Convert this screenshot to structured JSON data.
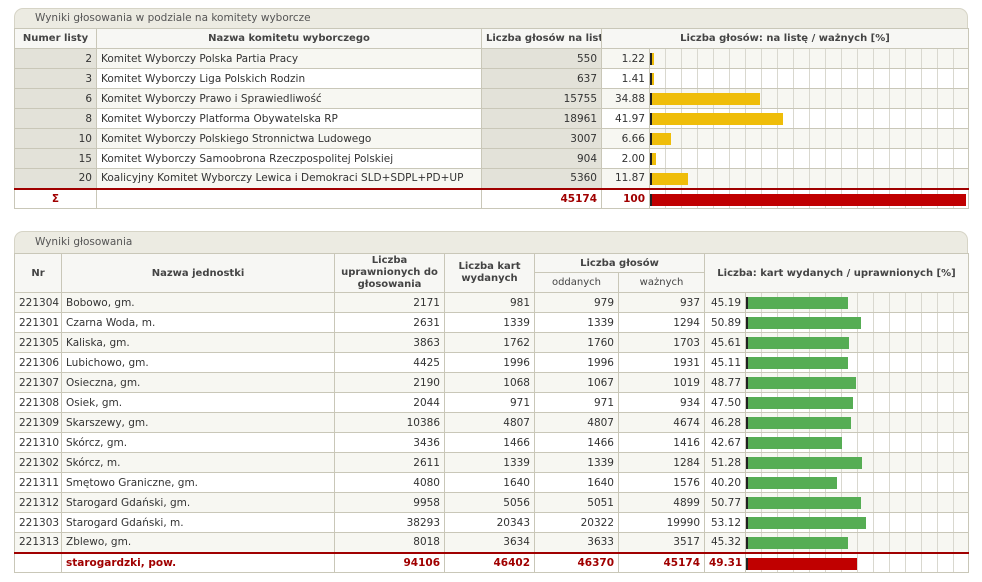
{
  "committees": {
    "title": "Wyniki głosowania w podziale na komitety wyborcze",
    "headers": {
      "number": "Numer listy",
      "name": "Nazwa komitetu wyborczego",
      "votes": "Liczba głosów na listę",
      "percent": "Liczba głosów: na listę / ważnych [%]"
    },
    "rows": [
      {
        "number": "2",
        "name": "Komitet Wyborczy Polska Partia Pracy",
        "votes": "550",
        "percent": "1.22",
        "fraction": 0.0122
      },
      {
        "number": "3",
        "name": "Komitet Wyborczy Liga Polskich Rodzin",
        "votes": "637",
        "percent": "1.41",
        "fraction": 0.0141
      },
      {
        "number": "6",
        "name": "Komitet Wyborczy Prawo i Sprawiedliwość",
        "votes": "15755",
        "percent": "34.88",
        "fraction": 0.3488
      },
      {
        "number": "8",
        "name": "Komitet Wyborczy Platforma Obywatelska RP",
        "votes": "18961",
        "percent": "41.97",
        "fraction": 0.4197
      },
      {
        "number": "10",
        "name": "Komitet Wyborczy Polskiego Stronnictwa Ludowego",
        "votes": "3007",
        "percent": "6.66",
        "fraction": 0.0666
      },
      {
        "number": "15",
        "name": "Komitet Wyborczy Samoobrona Rzeczpospolitej Polskiej",
        "votes": "904",
        "percent": "2.00",
        "fraction": 0.02
      },
      {
        "number": "20",
        "name": "Koalicyjny Komitet Wyborczy Lewica i Demokraci SLD+SDPL+PD+UP",
        "votes": "5360",
        "percent": "11.87",
        "fraction": 0.1187
      }
    ],
    "total": {
      "symbol": "Σ",
      "votes": "45174",
      "percent": "100",
      "fraction": 1.0
    }
  },
  "results": {
    "title": "Wyniki głosowania",
    "headers": {
      "nr": "Nr",
      "name": "Nazwa jednostki",
      "eligible": "Liczba uprawnionych do głosowania",
      "cards": "Liczba kart wydanych",
      "votes_group": "Liczba głosów",
      "cast": "oddanych",
      "valid": "ważnych",
      "ratio": "Liczba: kart wydanych / uprawnionych [%]"
    },
    "rows": [
      {
        "nr": "221304",
        "name": "Bobowo, gm.",
        "eligible": "2171",
        "cards": "981",
        "cast": "979",
        "valid": "937",
        "percent": "45.19",
        "fraction": 0.4519
      },
      {
        "nr": "221301",
        "name": "Czarna Woda, m.",
        "eligible": "2631",
        "cards": "1339",
        "cast": "1339",
        "valid": "1294",
        "percent": "50.89",
        "fraction": 0.5089
      },
      {
        "nr": "221305",
        "name": "Kaliska, gm.",
        "eligible": "3863",
        "cards": "1762",
        "cast": "1760",
        "valid": "1703",
        "percent": "45.61",
        "fraction": 0.4561
      },
      {
        "nr": "221306",
        "name": "Lubichowo, gm.",
        "eligible": "4425",
        "cards": "1996",
        "cast": "1996",
        "valid": "1931",
        "percent": "45.11",
        "fraction": 0.4511
      },
      {
        "nr": "221307",
        "name": "Osieczna, gm.",
        "eligible": "2190",
        "cards": "1068",
        "cast": "1067",
        "valid": "1019",
        "percent": "48.77",
        "fraction": 0.4877
      },
      {
        "nr": "221308",
        "name": "Osiek, gm.",
        "eligible": "2044",
        "cards": "971",
        "cast": "971",
        "valid": "934",
        "percent": "47.50",
        "fraction": 0.475
      },
      {
        "nr": "221309",
        "name": "Skarszewy, gm.",
        "eligible": "10386",
        "cards": "4807",
        "cast": "4807",
        "valid": "4674",
        "percent": "46.28",
        "fraction": 0.4628
      },
      {
        "nr": "221310",
        "name": "Skórcz, gm.",
        "eligible": "3436",
        "cards": "1466",
        "cast": "1466",
        "valid": "1416",
        "percent": "42.67",
        "fraction": 0.4267
      },
      {
        "nr": "221302",
        "name": "Skórcz, m.",
        "eligible": "2611",
        "cards": "1339",
        "cast": "1339",
        "valid": "1284",
        "percent": "51.28",
        "fraction": 0.5128
      },
      {
        "nr": "221311",
        "name": "Smętowo Graniczne, gm.",
        "eligible": "4080",
        "cards": "1640",
        "cast": "1640",
        "valid": "1576",
        "percent": "40.20",
        "fraction": 0.402
      },
      {
        "nr": "221312",
        "name": "Starogard Gdański, gm.",
        "eligible": "9958",
        "cards": "5056",
        "cast": "5051",
        "valid": "4899",
        "percent": "50.77",
        "fraction": 0.5077
      },
      {
        "nr": "221303",
        "name": "Starogard Gdański, m.",
        "eligible": "38293",
        "cards": "20343",
        "cast": "20322",
        "valid": "19990",
        "percent": "53.12",
        "fraction": 0.5312
      },
      {
        "nr": "221313",
        "name": "Zblewo, gm.",
        "eligible": "8018",
        "cards": "3634",
        "cast": "3633",
        "valid": "3517",
        "percent": "45.32",
        "fraction": 0.4532
      }
    ],
    "total": {
      "name": "starogardzki, pow.",
      "eligible": "94106",
      "cards": "46402",
      "cast": "46370",
      "valid": "45174",
      "percent": "49.31",
      "fraction": 0.4931
    }
  },
  "colors": {
    "committee_bar": "#efbd09",
    "turnout_bar": "#56ad54",
    "total_bar": "#c00000"
  }
}
